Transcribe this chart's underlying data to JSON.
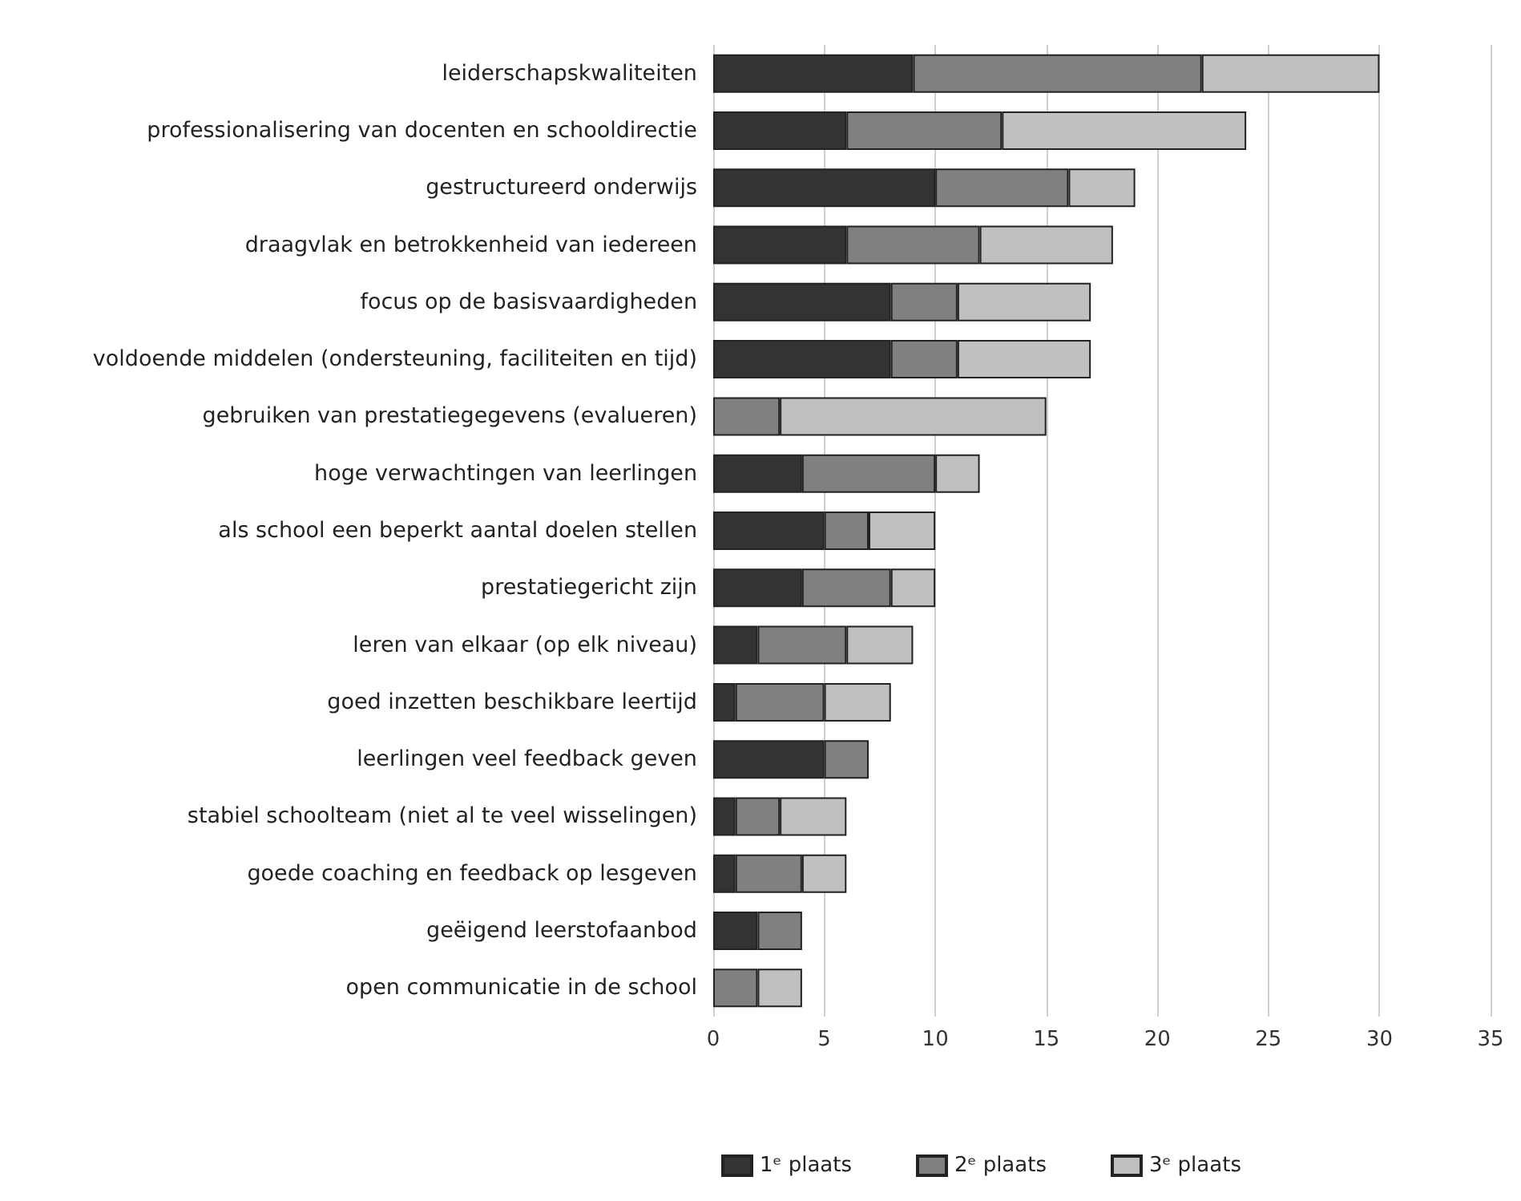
{
  "chart_data": {
    "type": "bar",
    "orientation": "horizontal",
    "stacked": true,
    "categories": [
      "leiderschapskwaliteiten",
      "professionalisering van docenten en schooldirectie",
      "gestructureerd onderwijs",
      "draagvlak en betrokkenheid van iedereen",
      "focus op de basisvaardigheden",
      "voldoende middelen (ondersteuning, faciliteiten en tijd)",
      "gebruiken van prestatiegegevens (evalueren)",
      "hoge verwachtingen van leerlingen",
      "als school een beperkt aantal doelen stellen",
      "prestatiegericht zijn",
      "leren van elkaar (op elk niveau)",
      "goed inzetten beschikbare leertijd",
      "leerlingen veel feedback geven",
      "stabiel schoolteam (niet al te veel wisselingen)",
      "goede coaching en feedback op lesgeven",
      "geëigend leerstofaanbod",
      "open communicatie in de school"
    ],
    "series": [
      {
        "name": "1ᵉ plaats",
        "color": "#333333",
        "values": [
          9,
          6,
          10,
          6,
          8,
          8,
          0,
          4,
          5,
          4,
          2,
          1,
          5,
          1,
          1,
          2,
          0
        ]
      },
      {
        "name": "2ᵉ plaats",
        "color": "#808080",
        "values": [
          13,
          7,
          6,
          6,
          3,
          3,
          3,
          6,
          2,
          4,
          4,
          4,
          2,
          2,
          3,
          2,
          2
        ]
      },
      {
        "name": "3ᵉ plaats",
        "color": "#c0c0c0",
        "values": [
          8,
          11,
          3,
          6,
          6,
          6,
          12,
          2,
          3,
          2,
          3,
          3,
          0,
          3,
          2,
          0,
          2
        ]
      }
    ],
    "xlim": [
      0,
      35
    ],
    "xticks": [
      0,
      5,
      10,
      15,
      20,
      25,
      30,
      35
    ],
    "grid": "x",
    "legend": "bottom"
  }
}
